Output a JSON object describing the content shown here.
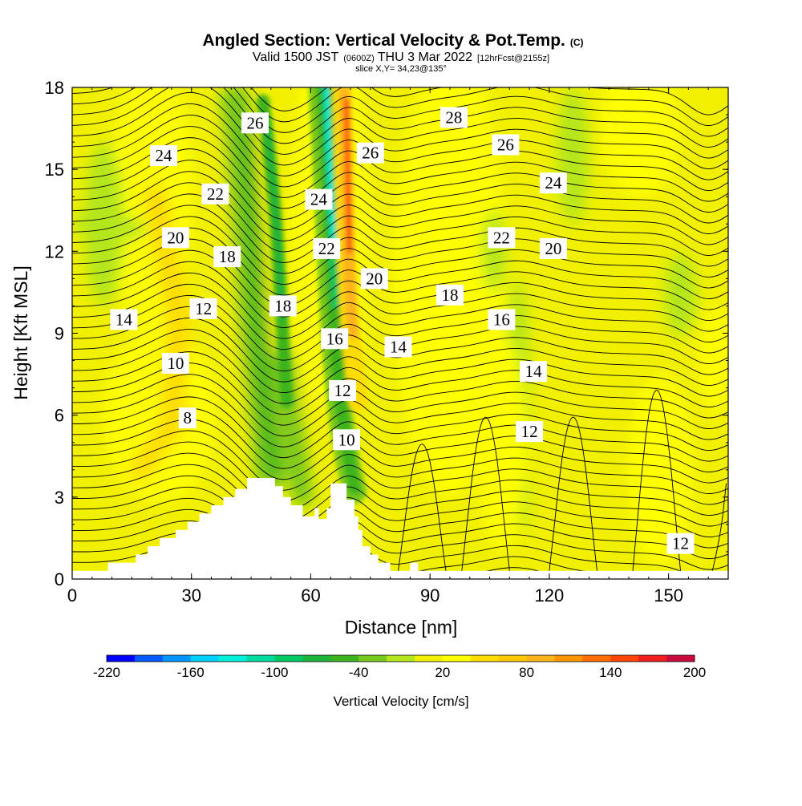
{
  "title": {
    "main": "Angled Section: Vertical Velocity & Pot.Temp.",
    "main_suffix": "(C)",
    "valid_a": "Valid 1500 JST",
    "valid_b": "(0600Z)",
    "valid_c": "THU 3 Mar 2022",
    "valid_d": "[12hrFcst@2155z]",
    "slice": "slice X,Y= 34,23@135°"
  },
  "chart_data": {
    "type": "heatmap",
    "xlabel": "Distance [nm]",
    "ylabel": "Height [Kft MSL]",
    "xlim": [
      0,
      165
    ],
    "ylim": [
      0,
      18
    ],
    "x_ticks": [
      "0",
      "30",
      "60",
      "90",
      "120",
      "150"
    ],
    "y_ticks": [
      "0",
      "3",
      "6",
      "9",
      "12",
      "15",
      "18"
    ],
    "colorbar": {
      "title": "Vertical Velocity [cm/s]",
      "min": -220,
      "max": 200,
      "step": 20,
      "tick_labels": [
        "-220",
        "-160",
        "-100",
        "-40",
        "20",
        "80",
        "140",
        "200"
      ],
      "colors": [
        "#0000ff",
        "#005aff",
        "#0096ff",
        "#00d2ff",
        "#00f0dc",
        "#00dca0",
        "#00c864",
        "#1eb43c",
        "#3cb41e",
        "#78c81e",
        "#b4e61e",
        "#f0f000",
        "#ffff00",
        "#ffdc00",
        "#ffc800",
        "#ffb41e",
        "#ff9600",
        "#ff6e00",
        "#ff4600",
        "#f01e1e",
        "#c80a3c",
        "#a0006e",
        "#7d007d"
      ]
    },
    "contour_variable": "potential temperature",
    "contour_labels": [
      {
        "text": "26",
        "x": 46,
        "y": 16.7
      },
      {
        "text": "24",
        "x": 23,
        "y": 15.5
      },
      {
        "text": "22",
        "x": 36,
        "y": 14.1
      },
      {
        "text": "20",
        "x": 26,
        "y": 12.5
      },
      {
        "text": "18",
        "x": 39,
        "y": 11.8
      },
      {
        "text": "14",
        "x": 13,
        "y": 9.5
      },
      {
        "text": "12",
        "x": 33,
        "y": 9.9
      },
      {
        "text": "10",
        "x": 26,
        "y": 7.9
      },
      {
        "text": "8",
        "x": 29,
        "y": 5.9
      },
      {
        "text": "18",
        "x": 53,
        "y": 10
      },
      {
        "text": "16",
        "x": 66,
        "y": 8.8
      },
      {
        "text": "12",
        "x": 68,
        "y": 6.9
      },
      {
        "text": "10",
        "x": 69,
        "y": 5.1
      },
      {
        "text": "24",
        "x": 62,
        "y": 13.9
      },
      {
        "text": "22",
        "x": 64,
        "y": 12.1
      },
      {
        "text": "26",
        "x": 75,
        "y": 15.6
      },
      {
        "text": "20",
        "x": 76,
        "y": 11
      },
      {
        "text": "14",
        "x": 82,
        "y": 8.5
      },
      {
        "text": "28",
        "x": 96,
        "y": 16.9
      },
      {
        "text": "26",
        "x": 109,
        "y": 15.9
      },
      {
        "text": "22",
        "x": 108,
        "y": 12.5
      },
      {
        "text": "18",
        "x": 95,
        "y": 10.4
      },
      {
        "text": "16",
        "x": 108,
        "y": 9.5
      },
      {
        "text": "20",
        "x": 121,
        "y": 12.1
      },
      {
        "text": "24",
        "x": 121,
        "y": 14.5
      },
      {
        "text": "14",
        "x": 116,
        "y": 7.6
      },
      {
        "text": "12",
        "x": 115,
        "y": 5.4
      },
      {
        "text": "12",
        "x": 153,
        "y": 1.3
      }
    ],
    "terrain": [
      [
        0,
        0.3
      ],
      [
        9,
        0.3
      ],
      [
        9,
        0.6
      ],
      [
        16,
        0.6
      ],
      [
        16,
        0.9
      ],
      [
        19,
        0.9
      ],
      [
        19,
        1.2
      ],
      [
        22,
        1.2
      ],
      [
        22,
        1.5
      ],
      [
        26,
        1.5
      ],
      [
        26,
        1.8
      ],
      [
        29,
        1.8
      ],
      [
        29,
        2.1
      ],
      [
        32,
        2.1
      ],
      [
        32,
        2.4
      ],
      [
        35,
        2.4
      ],
      [
        35,
        2.7
      ],
      [
        38,
        2.7
      ],
      [
        38,
        3
      ],
      [
        41,
        3
      ],
      [
        41,
        3.3
      ],
      [
        44,
        3.3
      ],
      [
        44,
        3.7
      ],
      [
        51,
        3.7
      ],
      [
        51,
        3.4
      ],
      [
        53,
        3.4
      ],
      [
        53,
        3
      ],
      [
        55,
        3
      ],
      [
        55,
        2.7
      ],
      [
        58,
        2.7
      ],
      [
        58,
        2.3
      ],
      [
        61,
        2.3
      ],
      [
        61,
        2.6
      ],
      [
        62,
        2.6
      ],
      [
        62,
        2.2
      ],
      [
        64,
        2.2
      ],
      [
        64,
        2.6
      ],
      [
        65,
        2.6
      ],
      [
        65,
        3.5
      ],
      [
        69,
        3.5
      ],
      [
        69,
        2.9
      ],
      [
        71,
        2.9
      ],
      [
        71,
        2.3
      ],
      [
        72,
        2.3
      ],
      [
        72,
        1.8
      ],
      [
        73,
        1.8
      ],
      [
        73,
        1.2
      ],
      [
        75,
        1.2
      ],
      [
        75,
        0.9
      ],
      [
        77,
        0.9
      ],
      [
        77,
        0.6
      ],
      [
        80,
        0.6
      ],
      [
        80,
        0.3
      ],
      [
        85,
        0.3
      ],
      [
        85,
        0.6
      ],
      [
        87,
        0.6
      ],
      [
        87,
        0.3
      ],
      [
        165,
        0.3
      ]
    ]
  }
}
